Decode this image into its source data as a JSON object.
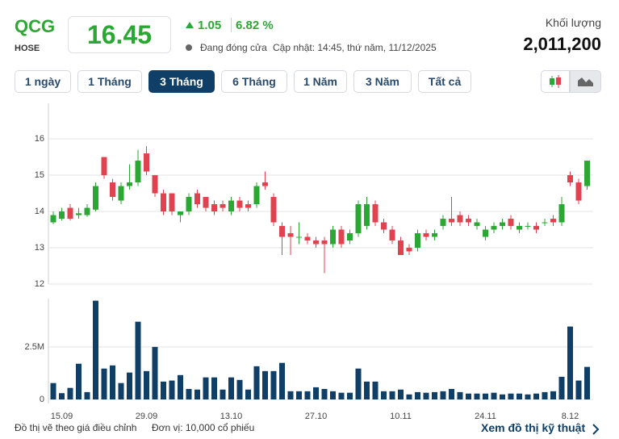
{
  "header": {
    "ticker": "QCG",
    "exchange": "HOSE",
    "price": "16.45",
    "change": "1.05",
    "change_percent": "6.82 %",
    "status": "Đang đóng cửa",
    "updated": "Cập nhật: 14:45, thứ năm, 11/12/2025",
    "volume_label": "Khối lượng",
    "volume": "2,011,200"
  },
  "buttons": [
    "1 ngày",
    "1 Tháng",
    "3 Tháng",
    "6 Tháng",
    "1 Năm",
    "3 Năm",
    "Tất cả"
  ],
  "selected_button": 2,
  "footer": {
    "note": "Đồ thị vẽ theo giá điều chỉnh",
    "unit": "Đơn vị: 10,000 cổ phiếu",
    "link": "Xem đồ thị kỹ thuật"
  },
  "chart_data": [
    {
      "type": "candlestick",
      "up_color": "#2aa833",
      "down_color": "#e0434f",
      "grid": true,
      "ylim": [
        12,
        16.98
      ],
      "yticks": [
        12,
        13,
        14,
        15,
        16
      ],
      "open": [
        13.7,
        13.8,
        14.1,
        13.9,
        13.9,
        14.05,
        15.5,
        14.8,
        14.3,
        14.7,
        14.8,
        15.6,
        15.0,
        14.5,
        14.5,
        13.9,
        14.0,
        14.5,
        14.4,
        14.2,
        14.2,
        14.0,
        14.3,
        14.2,
        14.2,
        14.8,
        14.4,
        13.6,
        13.4,
        13.3,
        13.3,
        13.2,
        13.2,
        13.1,
        13.5,
        13.2,
        13.4,
        13.6,
        14.2,
        13.7,
        13.5,
        13.2,
        13.0,
        13.0,
        13.4,
        13.3,
        13.6,
        13.8,
        13.9,
        13.8,
        13.6,
        13.3,
        13.5,
        13.6,
        13.8,
        13.5,
        13.6,
        13.6,
        13.7,
        13.8,
        13.7,
        15.0,
        14.8,
        14.7
      ],
      "high": [
        14.0,
        14.1,
        14.2,
        14.1,
        14.2,
        14.8,
        15.5,
        14.9,
        14.8,
        15.3,
        15.7,
        15.8,
        15.0,
        14.6,
        14.5,
        14.0,
        14.5,
        14.6,
        14.4,
        14.3,
        14.3,
        14.4,
        14.4,
        14.3,
        14.8,
        15.1,
        14.5,
        13.7,
        13.6,
        13.7,
        13.4,
        13.3,
        13.3,
        13.6,
        13.6,
        13.5,
        14.3,
        14.4,
        14.3,
        13.8,
        13.6,
        13.3,
        13.1,
        13.5,
        13.5,
        13.5,
        13.9,
        14.4,
        14.0,
        13.9,
        13.8,
        13.6,
        13.7,
        13.8,
        13.9,
        13.7,
        13.7,
        13.7,
        13.8,
        13.9,
        14.4,
        15.1,
        14.9,
        15.4
      ],
      "low": [
        13.65,
        13.75,
        13.75,
        13.8,
        13.85,
        14.0,
        14.9,
        14.3,
        14.2,
        14.6,
        14.7,
        15.0,
        14.4,
        13.9,
        13.9,
        13.7,
        13.9,
        14.1,
        14.0,
        13.9,
        14.0,
        13.9,
        14.0,
        14.0,
        14.1,
        14.6,
        13.6,
        12.8,
        12.8,
        13.1,
        13.1,
        13.0,
        12.3,
        13.0,
        13.0,
        13.1,
        13.3,
        13.5,
        13.6,
        13.4,
        13.1,
        12.8,
        12.8,
        12.9,
        13.2,
        13.2,
        13.5,
        13.6,
        13.6,
        13.6,
        13.5,
        13.2,
        13.4,
        13.5,
        13.5,
        13.4,
        13.5,
        13.4,
        13.6,
        13.6,
        13.6,
        14.7,
        14.2,
        14.6
      ],
      "close": [
        13.9,
        14.0,
        13.8,
        13.95,
        14.1,
        14.7,
        15.0,
        14.4,
        14.7,
        14.8,
        15.4,
        15.1,
        14.5,
        14.0,
        14.0,
        14.0,
        14.4,
        14.2,
        14.1,
        14.0,
        14.1,
        14.3,
        14.1,
        14.1,
        14.7,
        14.7,
        13.7,
        13.3,
        13.3,
        13.3,
        13.2,
        13.1,
        13.1,
        13.5,
        13.1,
        13.4,
        14.2,
        14.2,
        13.7,
        13.5,
        13.2,
        12.8,
        12.9,
        13.4,
        13.3,
        13.4,
        13.8,
        13.7,
        13.7,
        13.7,
        13.7,
        13.5,
        13.6,
        13.7,
        13.6,
        13.6,
        13.6,
        13.5,
        13.7,
        13.7,
        14.2,
        14.8,
        14.3,
        15.4
      ]
    },
    {
      "type": "bar",
      "color": "#0f3e66",
      "grid": true,
      "ylim": [
        0,
        4800000
      ],
      "yticks": [
        0,
        {
          "value": 2500000,
          "label": "2.5M"
        }
      ],
      "categories": [
        null,
        "15.09",
        null,
        null,
        null,
        null,
        null,
        null,
        null,
        null,
        null,
        "29.09",
        null,
        null,
        null,
        null,
        null,
        null,
        null,
        null,
        null,
        "13.10",
        null,
        null,
        null,
        null,
        null,
        null,
        null,
        null,
        null,
        "27.10",
        null,
        null,
        null,
        null,
        null,
        null,
        null,
        null,
        null,
        "10.11",
        null,
        null,
        null,
        null,
        null,
        null,
        null,
        null,
        null,
        "24.11",
        null,
        null,
        null,
        null,
        null,
        null,
        null,
        null,
        null,
        "8.12",
        null,
        null
      ],
      "values": [
        780000,
        300000,
        550000,
        1700000,
        350000,
        4700000,
        1470000,
        1620000,
        780000,
        1280000,
        3700000,
        1350000,
        2500000,
        850000,
        900000,
        1160000,
        500000,
        470000,
        1050000,
        1050000,
        470000,
        1050000,
        930000,
        470000,
        1580000,
        1350000,
        1350000,
        1740000,
        390000,
        390000,
        390000,
        580000,
        500000,
        390000,
        320000,
        320000,
        1470000,
        850000,
        850000,
        390000,
        390000,
        470000,
        240000,
        350000,
        320000,
        350000,
        390000,
        500000,
        350000,
        280000,
        280000,
        280000,
        320000,
        240000,
        280000,
        280000,
        240000,
        280000,
        350000,
        390000,
        1080000,
        3470000,
        900000,
        1550000
      ]
    }
  ]
}
